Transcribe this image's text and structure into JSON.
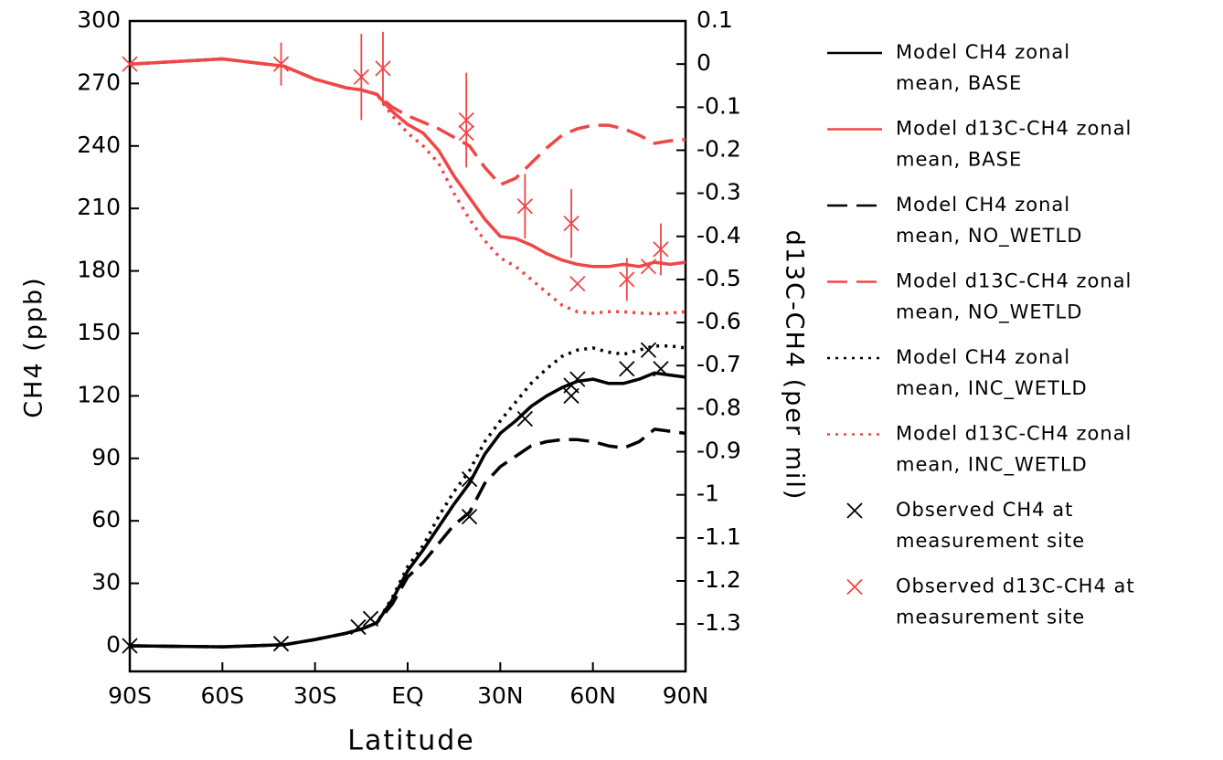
{
  "chart_data": {
    "type": "line",
    "xlabel": "Latitude",
    "ylabel": "CH4 (ppb)",
    "y2label": "d13C-CH4 (per mil)",
    "xlim": [
      -90,
      90
    ],
    "xticks": [
      {
        "value": -90,
        "label": "90S"
      },
      {
        "value": -60,
        "label": "60S"
      },
      {
        "value": -30,
        "label": "30S"
      },
      {
        "value": 0,
        "label": "EQ"
      },
      {
        "value": 30,
        "label": "30N"
      },
      {
        "value": 60,
        "label": "60N"
      },
      {
        "value": 90,
        "label": "90N"
      }
    ],
    "ylim": [
      -12.3,
      300
    ],
    "yticks": [
      0,
      30,
      60,
      90,
      120,
      150,
      180,
      210,
      240,
      270,
      300
    ],
    "y2lim": [
      -1.41,
      0.1
    ],
    "y2ticks": [
      0.1,
      0,
      -0.1,
      -0.2,
      -0.3,
      -0.4,
      -0.5,
      -0.6,
      -0.7,
      -0.8,
      -0.9,
      -1,
      -1.1,
      -1.2,
      -1.3
    ],
    "x": [
      -90,
      -60,
      -40,
      -30,
      -20,
      -15,
      -10,
      -5,
      0,
      5,
      10,
      15,
      20,
      25,
      30,
      35,
      40,
      45,
      50,
      55,
      60,
      65,
      70,
      75,
      80,
      85,
      90
    ],
    "series": [
      {
        "name": "Model CH4 zonal\nmean, BASE",
        "color": "#000000",
        "style": "solid",
        "values": [
          0,
          -0.5,
          0.5,
          3,
          6,
          8,
          11,
          22,
          36,
          46,
          57,
          68,
          78,
          92,
          102,
          108,
          115,
          120,
          124,
          127,
          128,
          126,
          126,
          128,
          131,
          130,
          129
        ]
      },
      {
        "name": "Model d13C-CH4 zonal\nmean, BASE",
        "color": "#f04646",
        "style": "solid",
        "axis": "y2",
        "values": [
          0,
          0.012,
          -0.005,
          -0.035,
          -0.055,
          -0.06,
          -0.07,
          -0.11,
          -0.14,
          -0.16,
          -0.2,
          -0.26,
          -0.31,
          -0.36,
          -0.4,
          -0.405,
          -0.42,
          -0.44,
          -0.455,
          -0.465,
          -0.47,
          -0.47,
          -0.465,
          -0.47,
          -0.46,
          -0.465,
          -0.46
        ]
      },
      {
        "name": "Model CH4 zonal\nmean, NO_WETLD",
        "color": "#000000",
        "style": "dashed",
        "values": [
          0,
          -0.5,
          0.5,
          3,
          6,
          8,
          11,
          20,
          33,
          40,
          49,
          58,
          64,
          78,
          86,
          91,
          96,
          98,
          99,
          99,
          98,
          96,
          95,
          98,
          104,
          103,
          102
        ]
      },
      {
        "name": "Model d13C-CH4 zonal\nmean, NO_WETLD",
        "color": "#f04646",
        "style": "dashed",
        "axis": "y2",
        "values": [
          0,
          0.012,
          -0.005,
          -0.035,
          -0.055,
          -0.06,
          -0.07,
          -0.1,
          -0.12,
          -0.135,
          -0.15,
          -0.17,
          -0.19,
          -0.24,
          -0.28,
          -0.265,
          -0.23,
          -0.195,
          -0.165,
          -0.15,
          -0.142,
          -0.142,
          -0.15,
          -0.165,
          -0.184,
          -0.178,
          -0.175
        ]
      },
      {
        "name": "Model CH4 zonal\nmean, INC_WETLD",
        "color": "#000000",
        "style": "dotted",
        "values": [
          0,
          -0.5,
          0.5,
          3,
          6,
          8,
          11,
          23,
          38,
          48,
          62,
          74,
          84,
          98,
          108,
          117,
          126,
          133,
          139,
          142,
          143,
          141,
          140,
          142,
          144,
          144,
          143
        ]
      },
      {
        "name": "Model d13C-CH4 zonal\nmean, INC_WETLD",
        "color": "#f04646",
        "style": "dotted",
        "axis": "y2",
        "values": [
          0,
          0.012,
          -0.005,
          -0.035,
          -0.055,
          -0.06,
          -0.07,
          -0.12,
          -0.16,
          -0.19,
          -0.23,
          -0.3,
          -0.36,
          -0.41,
          -0.45,
          -0.47,
          -0.5,
          -0.53,
          -0.56,
          -0.575,
          -0.578,
          -0.575,
          -0.575,
          -0.578,
          -0.58,
          -0.578,
          -0.575
        ]
      },
      {
        "name": "Observed CH4 at\nmeasurement site",
        "color": "#000000",
        "style": "markers",
        "x": [
          -90,
          -41,
          -16,
          -12,
          20,
          20,
          38,
          53,
          53,
          55,
          71,
          78,
          82
        ],
        "values": [
          0,
          1,
          9,
          13,
          80,
          62,
          109,
          120,
          125,
          128,
          133,
          142,
          133
        ]
      },
      {
        "name": "Observed d13C-CH4 at\nmeasurement site",
        "color": "#f04646",
        "style": "markers",
        "axis": "y2",
        "x": [
          -90,
          -41,
          -15,
          -8,
          19,
          19,
          38,
          53,
          55,
          71,
          78,
          82
        ],
        "values": [
          0,
          0,
          -0.03,
          -0.01,
          -0.13,
          -0.16,
          -0.33,
          -0.37,
          -0.51,
          -0.5,
          -0.47,
          -0.43
        ],
        "errors": [
          null,
          0.05,
          0.1,
          0.085,
          0.11,
          null,
          0.075,
          0.08,
          null,
          0.05,
          null,
          0.06
        ]
      }
    ]
  }
}
